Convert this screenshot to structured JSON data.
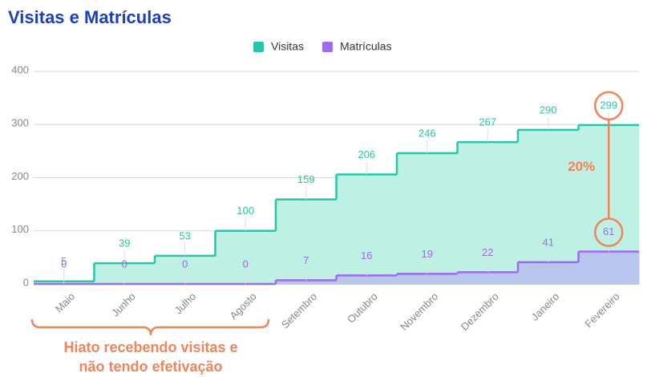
{
  "chart_data": {
    "type": "step-area",
    "title": "Visitas e Matrículas",
    "categories": [
      "Maio",
      "Junho",
      "Julho",
      "Agosto",
      "Setembro",
      "Outubro",
      "Novembro",
      "Dezembro",
      "Janeiro",
      "Fevereiro"
    ],
    "series": [
      {
        "name": "Visitas",
        "color": "#26c6a6",
        "fill": "#bff0e4",
        "values": [
          5,
          39,
          53,
          100,
          159,
          206,
          246,
          267,
          290,
          299
        ]
      },
      {
        "name": "Matrículas",
        "color": "#9b6cf0",
        "fill": "#b9c6ee",
        "values": [
          0,
          0,
          0,
          0,
          7,
          16,
          19,
          22,
          41,
          61
        ]
      }
    ],
    "ylim": [
      0,
      400
    ],
    "yticks": [
      0,
      100,
      200,
      300,
      400
    ],
    "grid": true,
    "legend": "top",
    "annotations": [
      "20%",
      "Hiato recebendo visitas e",
      "não tendo efetivação"
    ],
    "annotation_color": "#f0845a"
  }
}
